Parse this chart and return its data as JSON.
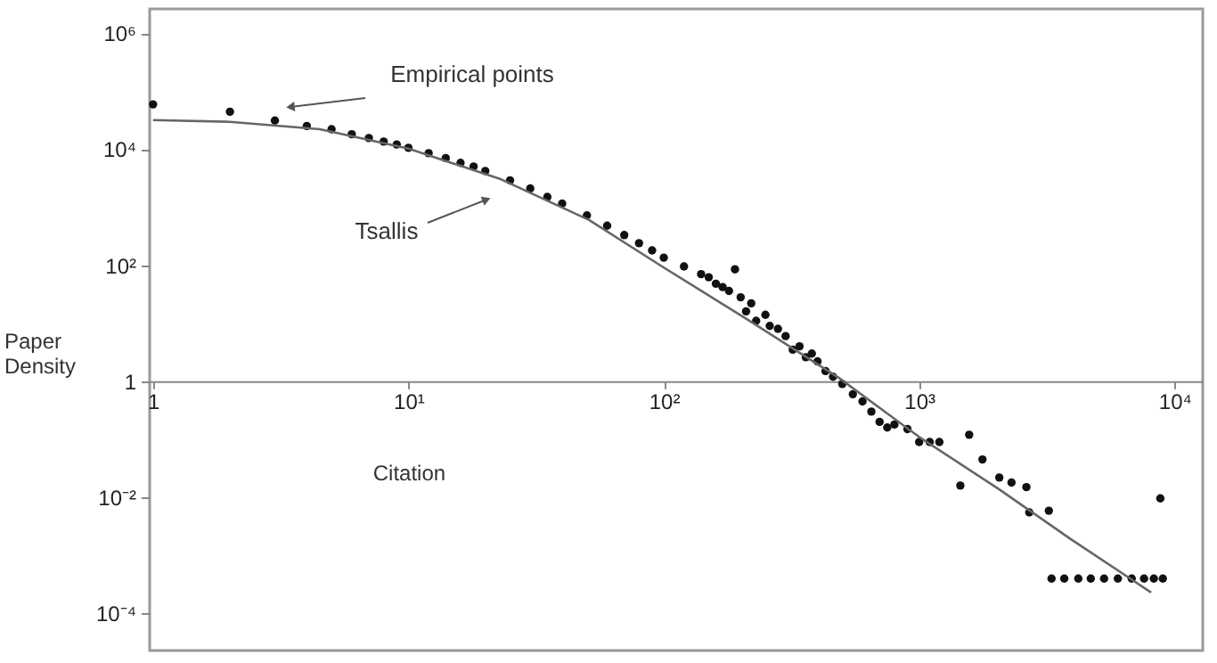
{
  "chart_data": {
    "type": "scatter",
    "xlabel": "Citation",
    "ylabel": "Paper Density",
    "log": "xy",
    "grid": false,
    "xlim": [
      0.97,
      12900
    ],
    "ylim": [
      2.3e-05,
      2600000
    ],
    "xticks": [
      1,
      {
        "value": 10,
        "label": "10¹"
      },
      {
        "value": 100,
        "label": "10²"
      },
      {
        "value": 1000,
        "label": "10³"
      },
      {
        "value": 10000,
        "label": "10⁴"
      }
    ],
    "yticks": [
      {
        "value": 0.0001,
        "label": "10⁻⁴"
      },
      {
        "value": 0.01,
        "label": "10⁻²"
      },
      1,
      {
        "value": 100,
        "label": "10²"
      },
      {
        "value": 10000,
        "label": "10⁴"
      },
      {
        "value": 1000000,
        "label": "10⁶"
      }
    ],
    "series": [
      {
        "marker": "circle",
        "color": "#111111",
        "x": [
          1,
          2,
          3,
          4,
          5,
          6,
          7,
          8,
          9,
          10,
          12,
          14,
          16,
          18,
          20,
          25,
          30,
          35,
          40,
          50,
          60,
          70,
          80,
          90,
          100,
          120,
          140,
          150,
          160,
          170,
          180,
          190,
          200,
          210,
          220,
          230,
          250,
          260,
          280,
          300,
          320,
          340,
          360,
          380,
          400,
          430,
          460,
          500,
          550,
          600,
          650,
          700,
          750,
          800,
          900,
          1000,
          1100,
          1200,
          1450,
          1570,
          1770,
          2060,
          2300,
          2630,
          2700,
          3220,
          8800,
          3300,
          3700,
          4200,
          4700,
          5300,
          6000,
          6800,
          7600,
          8300,
          9000
        ],
        "values": [
          59000,
          44000,
          31000,
          25000,
          22000,
          18000,
          15500,
          13500,
          12000,
          10500,
          8500,
          7000,
          5800,
          5000,
          4200,
          2900,
          2100,
          1500,
          1150,
          720,
          480,
          330,
          240,
          180,
          135,
          95,
          70,
          62,
          48,
          42,
          36,
          85,
          28,
          16,
          22,
          11,
          14,
          9,
          8,
          6,
          3.5,
          4,
          2.6,
          3,
          2.2,
          1.5,
          1.2,
          0.9,
          0.6,
          0.45,
          0.3,
          0.2,
          0.16,
          0.18,
          0.15,
          0.09,
          0.09,
          0.09,
          0.016,
          0.12,
          0.045,
          0.022,
          0.018,
          0.015,
          0.0055,
          0.0059,
          0.0096,
          0.0004,
          0.0004,
          0.0004,
          0.0004,
          0.0004,
          0.0004,
          0.0004,
          0.0004,
          0.0004,
          0.0004
        ]
      },
      {
        "type": "line",
        "marker": "none",
        "color": "#666666",
        "x": [
          1,
          2,
          4.5,
          10,
          22.7,
          51,
          100,
          217,
          484,
          1000,
          2070,
          3930,
          8100
        ],
        "values": [
          31600,
          29500,
          22000,
          10200,
          3100,
          600,
          91,
          11,
          1.15,
          0.11,
          0.0135,
          0.0019,
          0.00023
        ]
      }
    ],
    "annotations": [
      "Empirical points",
      "Tsallis"
    ]
  }
}
